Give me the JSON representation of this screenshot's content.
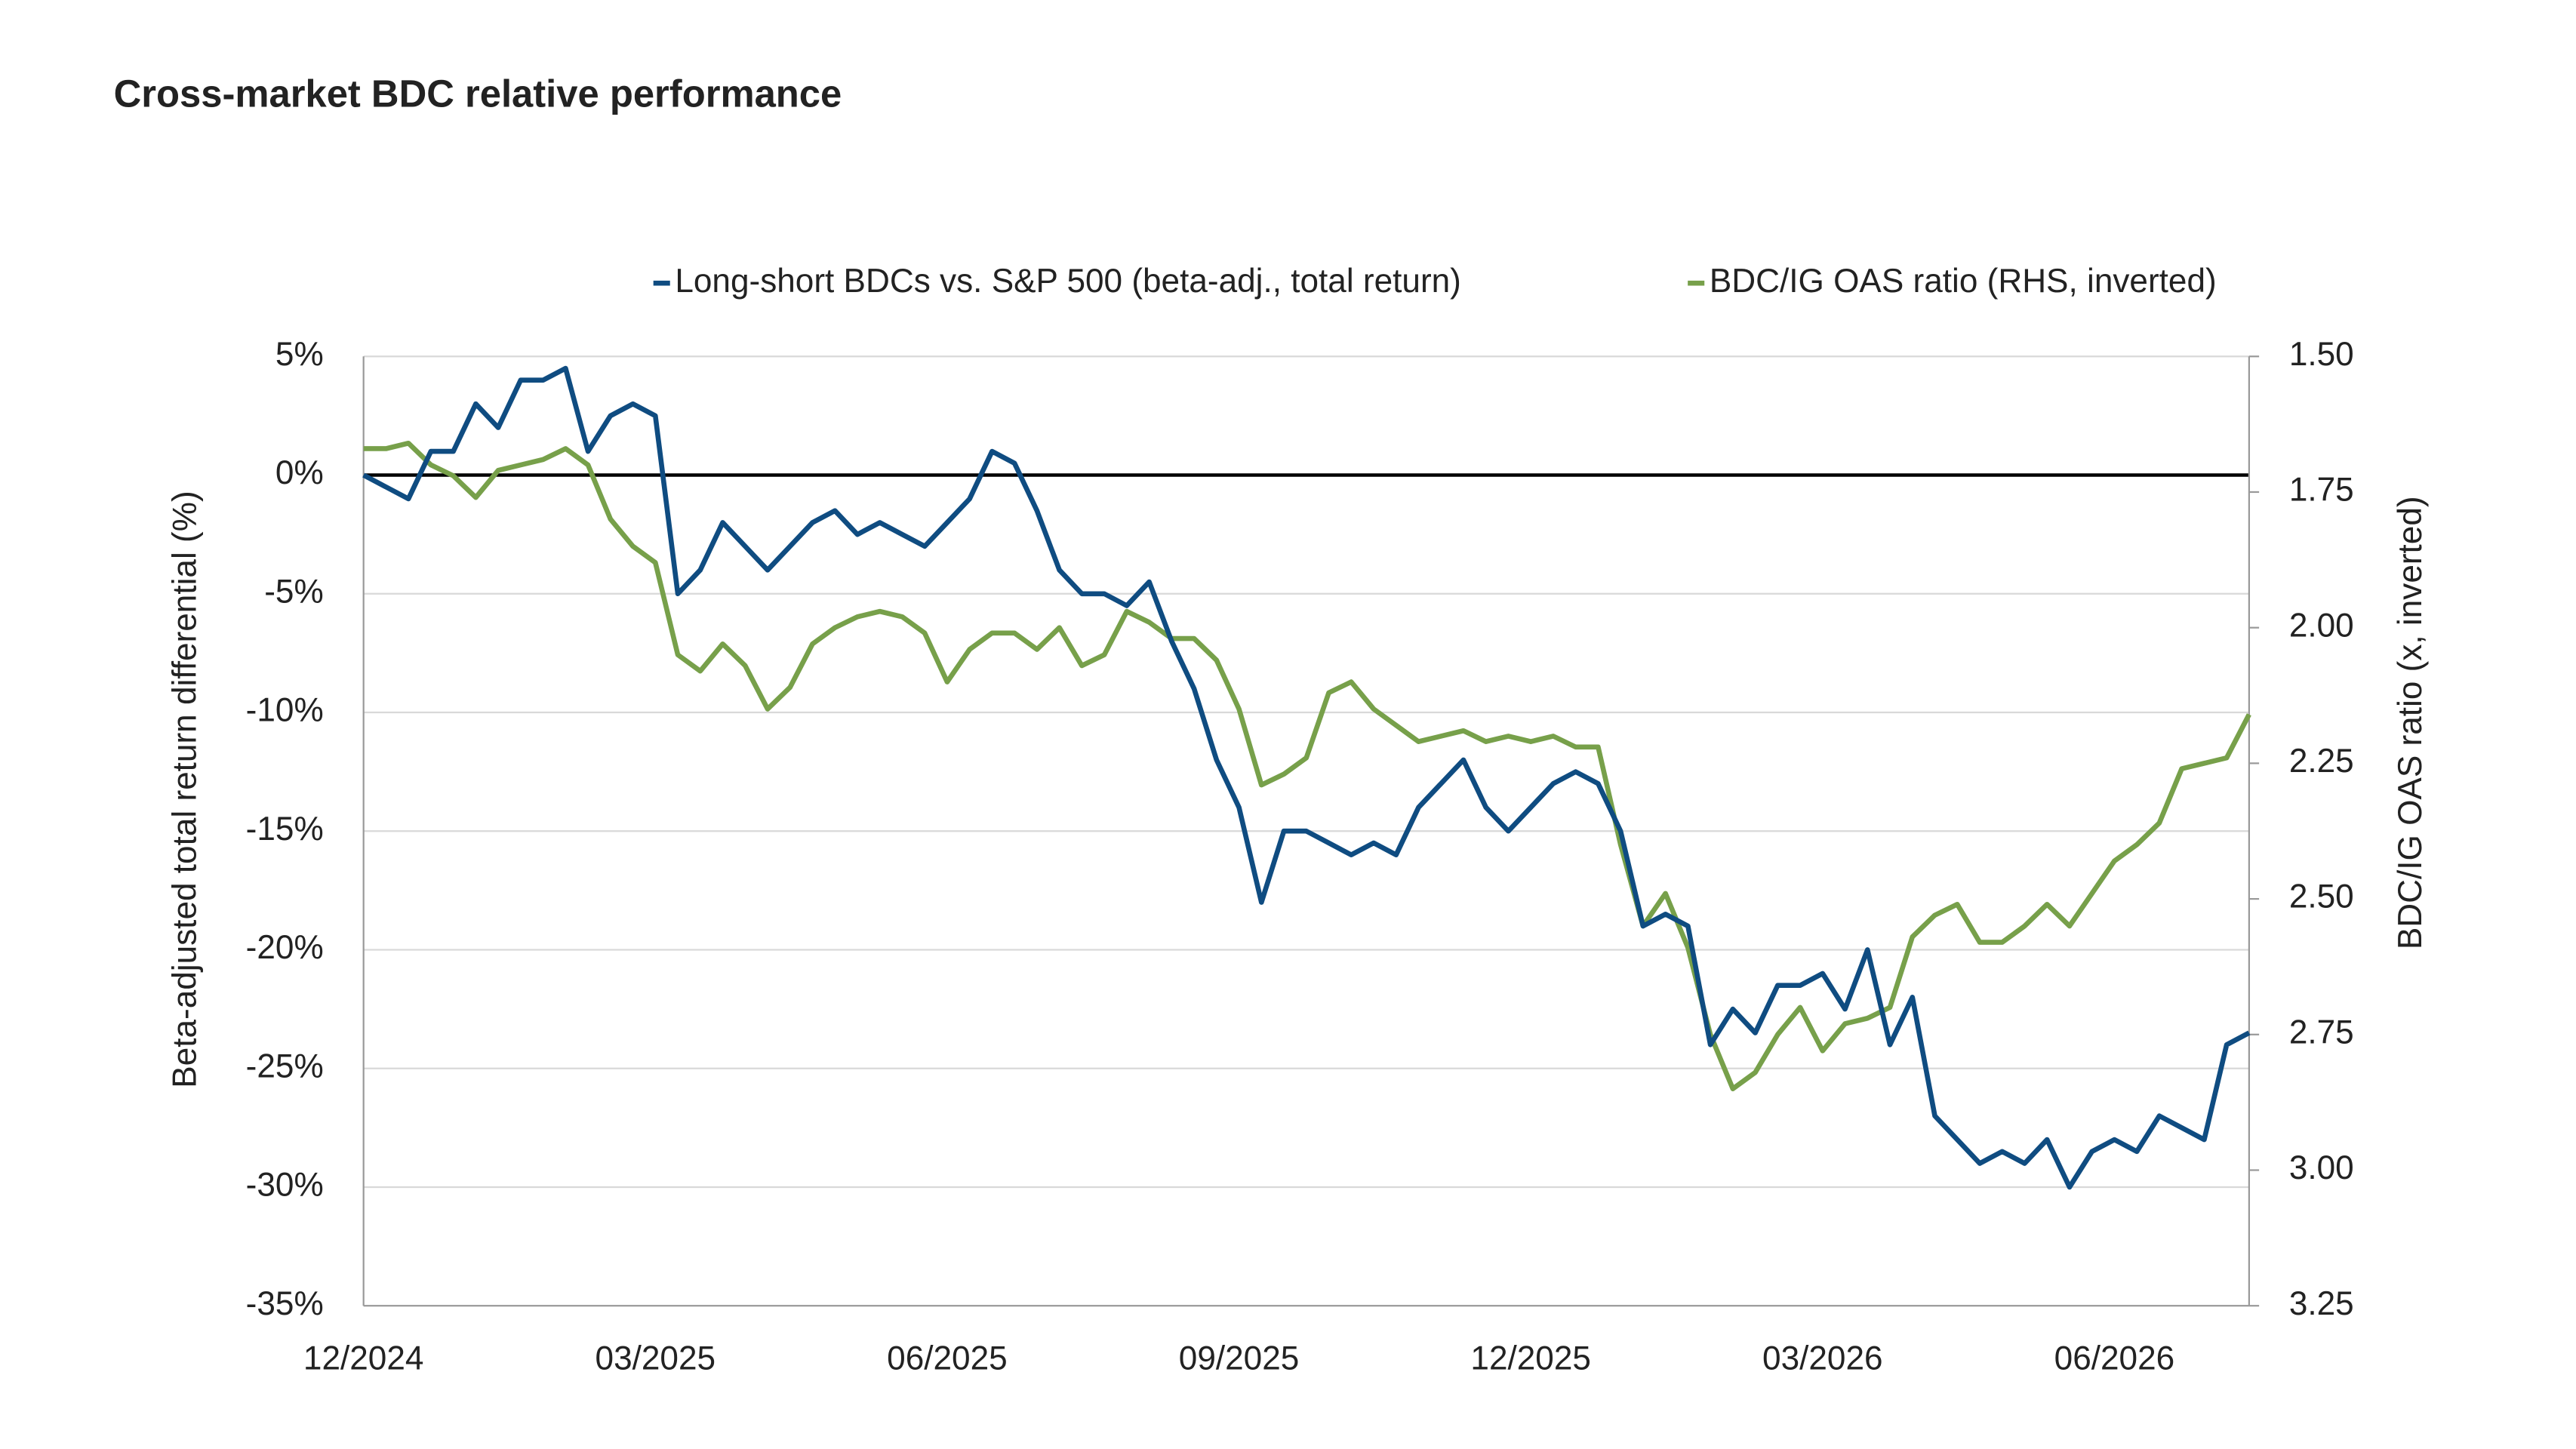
{
  "chart_data": {
    "type": "line",
    "title": "Cross-market BDC relative performance",
    "y_label": "Beta-adjusted total return differential (%)",
    "y2_label": "BDC/IG OAS ratio (x, inverted)",
    "x": [
      "12/2024",
      null,
      null,
      null,
      null,
      null,
      null,
      null,
      null,
      null,
      null,
      null,
      null,
      "03/2025",
      null,
      null,
      null,
      null,
      null,
      null,
      null,
      null,
      null,
      null,
      null,
      null,
      "06/2025",
      null,
      null,
      null,
      null,
      null,
      null,
      null,
      null,
      null,
      null,
      null,
      null,
      "09/2025",
      null,
      null,
      null,
      null,
      null,
      null,
      null,
      null,
      null,
      null,
      null,
      null,
      "12/2025",
      null,
      null,
      null,
      null,
      null,
      null,
      null,
      null,
      null,
      null,
      null,
      null,
      "03/2026",
      null,
      null,
      null,
      null,
      null,
      null,
      null,
      null,
      null,
      null,
      null,
      null,
      "06/2026",
      null,
      null,
      null,
      null,
      null,
      null
    ],
    "series": [
      {
        "name": "Long-short BDCs vs. S&P 500 (beta-adj., total return)",
        "color": "#0f4c81",
        "values": [
          0,
          -0.5,
          -1,
          1,
          1,
          3,
          2,
          4,
          4,
          4.5,
          1,
          2.5,
          3,
          2.5,
          -5,
          -4,
          -2,
          -3,
          -4,
          -3,
          -2,
          -1.5,
          -2.5,
          -2,
          -2.5,
          -3,
          -2,
          -1,
          1,
          0.5,
          -1.5,
          -4,
          -5,
          -5,
          -5.5,
          -4.5,
          -7,
          -9,
          -12,
          -14,
          -18,
          -15,
          -15,
          -15.5,
          -16,
          -15.5,
          -16,
          -14,
          -13,
          -12,
          -14,
          -15,
          -14,
          -13,
          -12.5,
          -13,
          -15,
          -19,
          -18.5,
          -19,
          -24,
          -22.5,
          -23.5,
          -21.5,
          -21.5,
          -21,
          -22.5,
          -20,
          -24,
          -22,
          -27,
          -28,
          -29,
          -28.5,
          -29,
          -28,
          -30,
          -28.5,
          -28,
          -28.5,
          -27,
          -27.5,
          -28,
          -24,
          -23.5
        ]
      },
      {
        "name": "BDC/IG OAS ratio (RHS, inverted)",
        "color": "#77a04a",
        "axis": "y2",
        "values": [
          1.67,
          1.67,
          1.66,
          1.7,
          1.72,
          1.76,
          1.71,
          1.7,
          1.69,
          1.67,
          1.7,
          1.8,
          1.85,
          1.88,
          2.05,
          2.08,
          2.03,
          2.07,
          2.15,
          2.11,
          2.03,
          2.0,
          1.98,
          1.97,
          1.98,
          2.01,
          2.1,
          2.04,
          2.01,
          2.01,
          2.04,
          2.0,
          2.07,
          2.05,
          1.97,
          1.99,
          2.02,
          2.02,
          2.06,
          2.15,
          2.29,
          2.27,
          2.24,
          2.12,
          2.1,
          2.15,
          2.18,
          2.21,
          2.2,
          2.19,
          2.21,
          2.2,
          2.21,
          2.2,
          2.22,
          2.22,
          2.4,
          2.55,
          2.49,
          2.59,
          2.75,
          2.85,
          2.82,
          2.75,
          2.7,
          2.78,
          2.73,
          2.72,
          2.7,
          2.57,
          2.53,
          2.51,
          2.58,
          2.58,
          2.55,
          2.51,
          2.55,
          2.49,
          2.43,
          2.4,
          2.36,
          2.26,
          2.25,
          2.24,
          2.16
        ]
      }
    ],
    "ylim": [
      -35,
      5
    ],
    "yticks": [
      {
        "value": -35,
        "label": "-35%"
      },
      {
        "value": -30,
        "label": "-30%"
      },
      {
        "value": -25,
        "label": "-25%"
      },
      {
        "value": -20,
        "label": "-20%"
      },
      {
        "value": -15,
        "label": "-15%"
      },
      {
        "value": -10,
        "label": "-10%"
      },
      {
        "value": -5,
        "label": "-5%"
      },
      {
        "value": 0,
        "label": "0%"
      },
      {
        "value": 5,
        "label": "5%"
      }
    ],
    "y2lim": [
      1.5,
      3.25
    ],
    "y2_inverted": true,
    "y2ticks": [
      {
        "value": 1.5,
        "label": "1.50"
      },
      {
        "value": 1.75,
        "label": "1.75"
      },
      {
        "value": 2.0,
        "label": "2.00"
      },
      {
        "value": 2.25,
        "label": "2.25"
      },
      {
        "value": 2.5,
        "label": "2.50"
      },
      {
        "value": 2.75,
        "label": "2.75"
      },
      {
        "value": 3.0,
        "label": "3.00"
      },
      {
        "value": 3.25,
        "label": "3.25"
      }
    ],
    "grid": true,
    "zero_line": true,
    "legend": "top"
  }
}
